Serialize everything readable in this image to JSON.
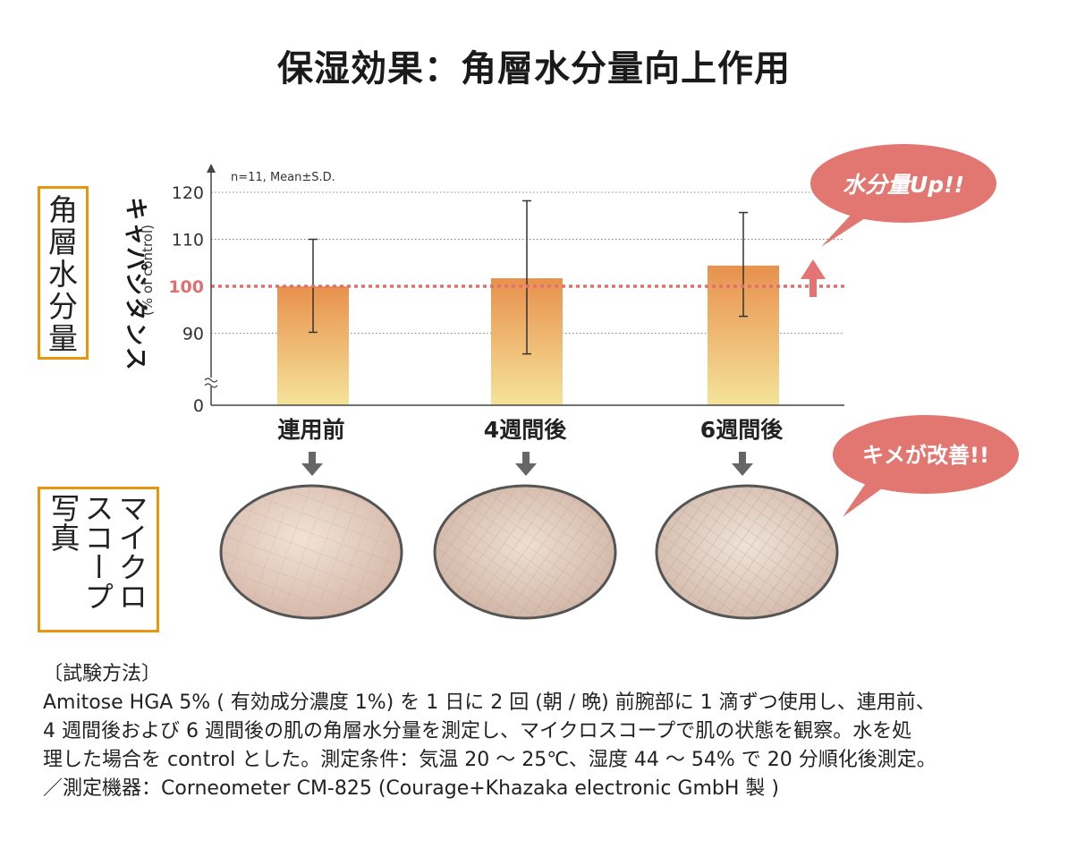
{
  "title": "保湿効果：角層水分量向上作用",
  "side_labels": {
    "moisture": [
      "角",
      "層",
      "水",
      "分",
      "量"
    ],
    "microscope": [
      "マイクロ",
      "スコープ",
      "写真"
    ]
  },
  "chart_data": {
    "type": "bar",
    "title": "",
    "annotation": "n=11, Mean±S.D.",
    "ylabel": "キャパシタンス",
    "ylabel_sub": "(% of control)",
    "categories": [
      "連用前",
      "4週間後",
      "6週間後"
    ],
    "values": [
      100,
      101.7,
      104.4
    ],
    "error_low": [
      90.2,
      85.6,
      93.6
    ],
    "error_high": [
      110,
      118.2,
      115.7
    ],
    "yticks": [
      "0",
      "90",
      "100",
      "110",
      "120"
    ],
    "ylim": [
      80,
      120
    ],
    "axis_break": true,
    "reference_value": 100,
    "colors": {
      "bar_top": "#e8914d",
      "bar_bottom": "#f5e39a",
      "reference": "#e07070",
      "accent": "#e07070",
      "frame": "#e8950f"
    }
  },
  "callouts": {
    "moisture_up": "水分量Up!!",
    "texture_improved": "キメが改善!!"
  },
  "method": {
    "heading": "〔試験方法〕",
    "lines": [
      "Amitose HGA 5% ( 有効成分濃度 1%) を 1 日に 2 回 (朝 / 晩) 前腕部に 1 滴ずつ使用し、連用前、",
      "4 週間後および 6 週間後の肌の角層水分量を測定し、マイクロスコープで肌の状態を観察。水を処",
      "理した場合を control とした。測定条件：気温 20 ～ 25℃、湿度 44 ～ 54% で 20 分順化後測定。",
      "／測定機器：Corneometer CM-825 (Courage+Khazaka electronic GmbH 製 )"
    ]
  }
}
